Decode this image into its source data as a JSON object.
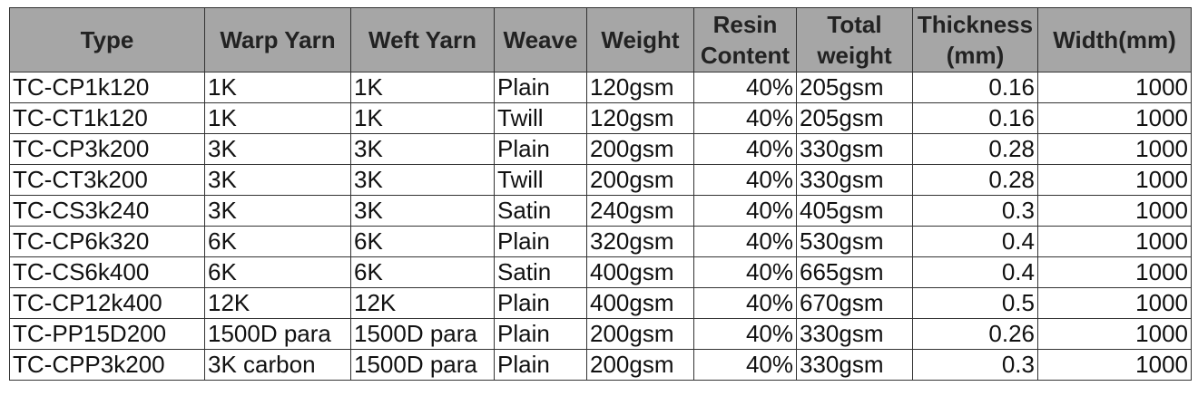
{
  "table": {
    "header": [
      "Type",
      "Warp Yarn",
      "Weft Yarn",
      "Weave",
      "Weight",
      "Resin Content",
      "Total weight",
      "Thickness(mm)",
      "Width(mm)"
    ],
    "rows": [
      [
        "TC-CP1k120",
        "1K",
        "1K",
        "Plain",
        "120gsm",
        "40%",
        "205gsm",
        "0.16",
        "1000"
      ],
      [
        "TC-CT1k120",
        "1K",
        "1K",
        "Twill",
        "120gsm",
        "40%",
        "205gsm",
        "0.16",
        "1000"
      ],
      [
        "TC-CP3k200",
        "3K",
        "3K",
        "Plain",
        "200gsm",
        "40%",
        "330gsm",
        "0.28",
        "1000"
      ],
      [
        "TC-CT3k200",
        "3K",
        "3K",
        "Twill",
        "200gsm",
        "40%",
        "330gsm",
        "0.28",
        "1000"
      ],
      [
        "TC-CS3k240",
        "3K",
        "3K",
        "Satin",
        "240gsm",
        "40%",
        "405gsm",
        "0.3",
        "1000"
      ],
      [
        "TC-CP6k320",
        "6K",
        "6K",
        "Plain",
        "320gsm",
        "40%",
        "530gsm",
        "0.4",
        "1000"
      ],
      [
        "TC-CS6k400",
        "6K",
        "6K",
        "Satin",
        "400gsm",
        "40%",
        "665gsm",
        "0.4",
        "1000"
      ],
      [
        "TC-CP12k400",
        "12K",
        "12K",
        "Plain",
        "400gsm",
        "40%",
        "670gsm",
        "0.5",
        "1000"
      ],
      [
        "TC-PP15D200",
        "1500D para",
        "1500D para",
        "Plain",
        "200gsm",
        "40%",
        "330gsm",
        "0.26",
        "1000"
      ],
      [
        "TC-CPP3k200",
        "3K carbon",
        "1500D para",
        "Plain",
        "200gsm",
        "40%",
        "330gsm",
        "0.3",
        "1000"
      ]
    ]
  }
}
